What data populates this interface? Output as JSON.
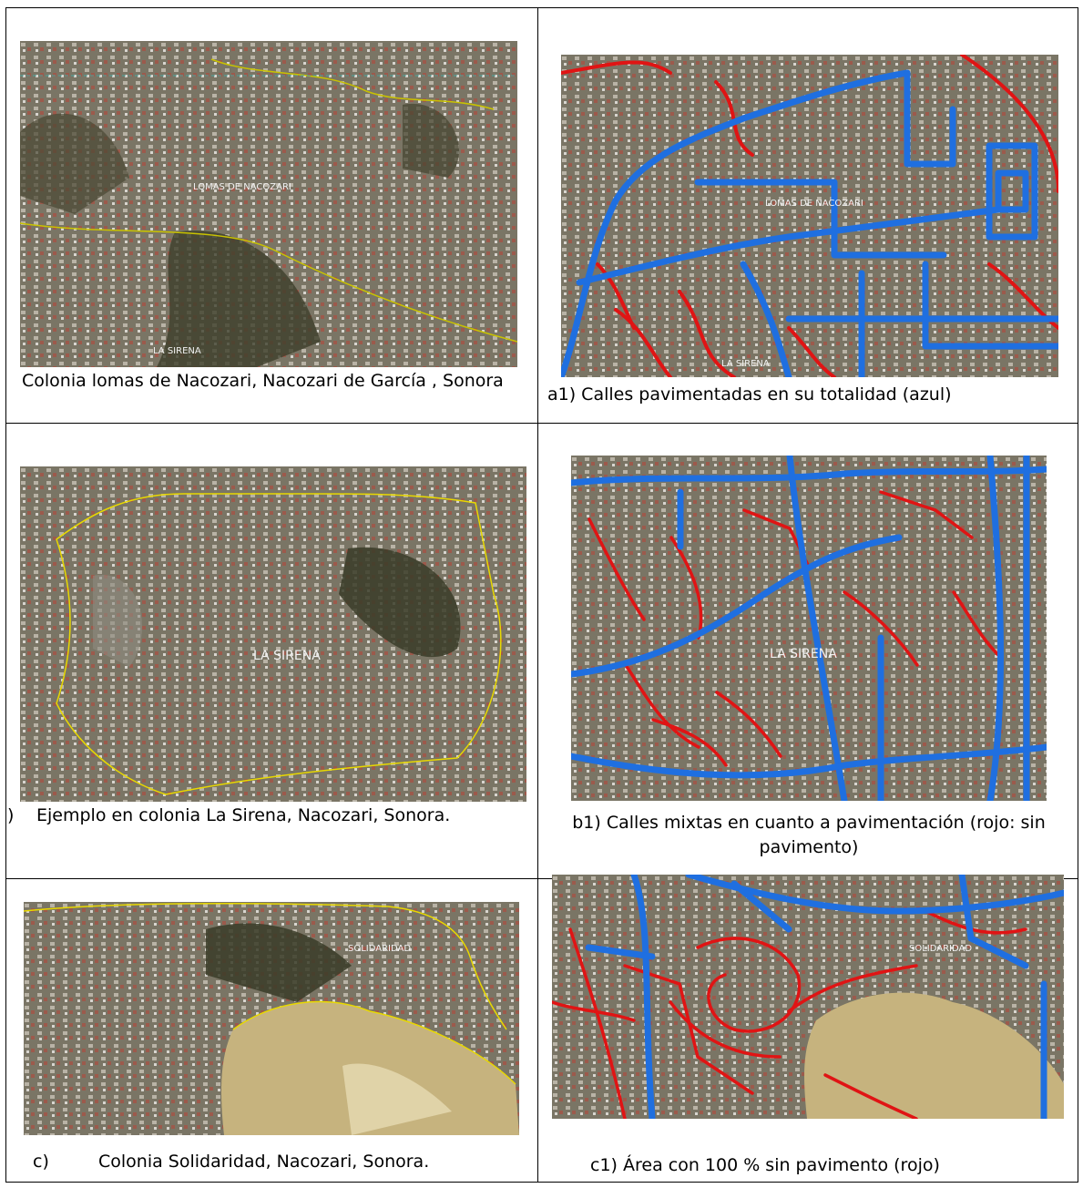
{
  "top_fragment": "",
  "panels": {
    "a": {
      "label": "LOMAS DE NACOZARI",
      "label2": "LA SIRENA",
      "caption": "Colonia lomas de Nacozari, Nacozari de García , Sonora"
    },
    "a1": {
      "label": "LOMAS DE NACOZARI",
      "label2": "LA SIRENA",
      "caption": "a1) Calles pavimentadas en su totalidad (azul)"
    },
    "b": {
      "label": "LA SIRENA",
      "caption_prefix": ")",
      "caption": "Ejemplo en colonia La Sirena, Nacozari, Sonora."
    },
    "b1": {
      "label": "LA SIRENA",
      "caption": "b1) Calles mixtas en cuanto a pavimentación (rojo: sin pavimento)"
    },
    "c": {
      "label": "SOLIDARIDAD",
      "caption_marker": "c)",
      "caption": "Colonia Solidaridad, Nacozari, Sonora."
    },
    "c1": {
      "label": "SOLIDARIDAD",
      "caption": "c1) Área con 100 % sin pavimento (rojo)"
    }
  },
  "colors": {
    "paved": "#1f6fe0",
    "unpaved": "#e01414",
    "boundary": "#e8d800",
    "terrain": "#6f6a5c"
  }
}
